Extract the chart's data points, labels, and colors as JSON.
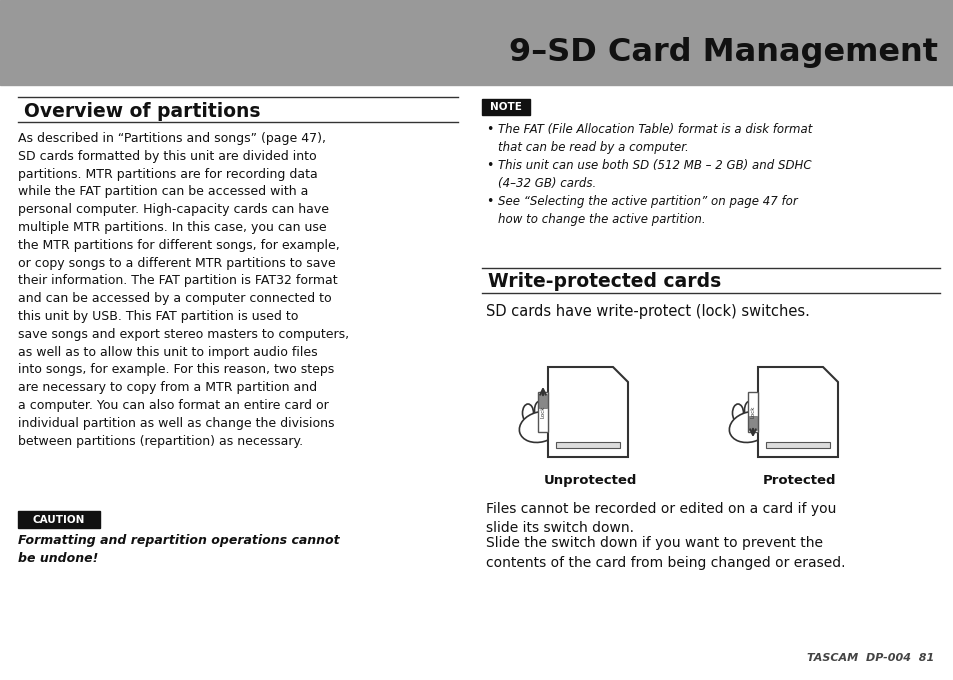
{
  "bg_color": "#ffffff",
  "header_bg": "#999999",
  "header_text": "9–SD Card Management",
  "left_section_title": "Overview of partitions",
  "left_body": "As described in “Partitions and songs” (page 47),\nSD cards formatted by this unit are divided into\npartitions. MTR partitions are for recording data\nwhile the FAT partition can be accessed with a\npersonal computer. High-capacity cards can have\nmultiple MTR partitions. In this case, you can use\nthe MTR partitions for different songs, for example,\nor copy songs to a different MTR partitions to save\ntheir information. The FAT partition is FAT32 format\nand can be accessed by a computer connected to\nthis unit by USB. This FAT partition is used to\nsave songs and export stereo masters to computers,\nas well as to allow this unit to import audio files\ninto songs, for example. For this reason, two steps\nare necessary to copy from a MTR partition and\na computer. You can also format an entire card or\nindividual partition as well as change the divisions\nbetween partitions (repartition) as necessary.",
  "caution_label": "CAUTION",
  "caution_text": "Formatting and repartition operations cannot\nbe undone!",
  "note_label": "NOTE",
  "note_bullets": [
    "The FAT (File Allocation Table) format is a disk format\nthat can be read by a computer.",
    "This unit can use both SD (512 MB – 2 GB) and SDHC\n(4–32 GB) cards.",
    "See “Selecting the active partition” on page 47 for\nhow to change the active partition."
  ],
  "right_section_title": "Write-protected cards",
  "right_body1": "SD cards have write-protect (lock) switches.",
  "unprotected_label": "Unprotected",
  "protected_label": "Protected",
  "right_body2": "Files cannot be recorded or edited on a card if you\nslide its switch down.",
  "right_body3": "Slide the switch down if you want to prevent the\ncontents of the card from being changed or erased.",
  "footer_text": "TASCAM  DP-004  81"
}
